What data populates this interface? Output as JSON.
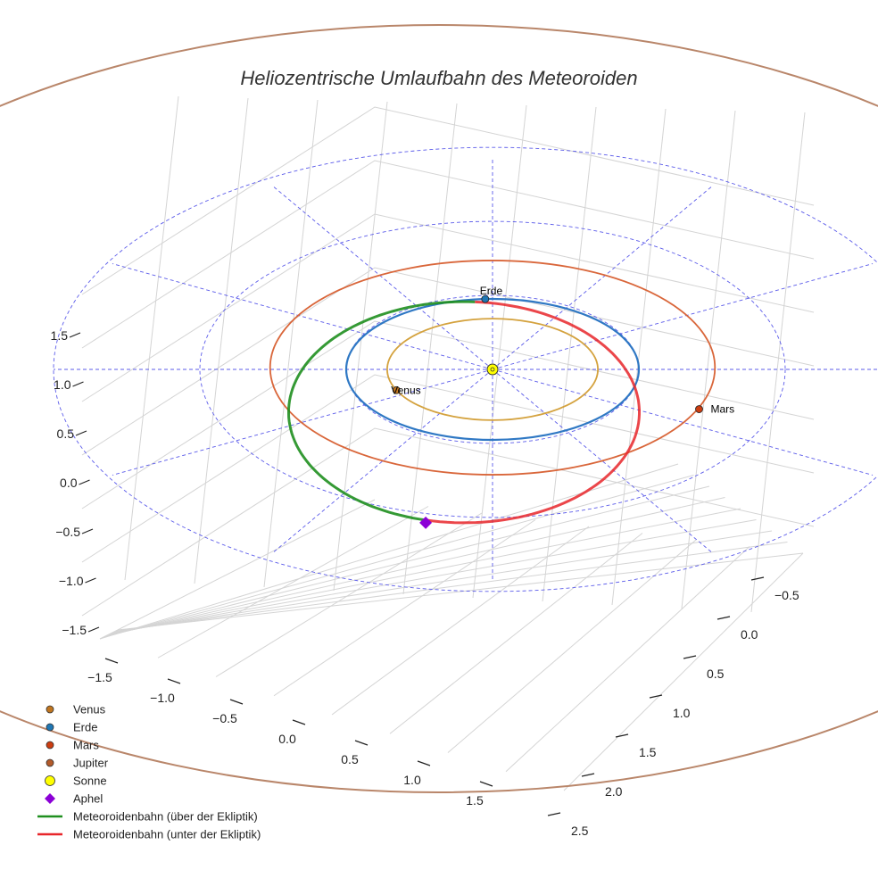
{
  "chart_data": {
    "type": "line",
    "projection": "3d",
    "title": "Heliozentrische Umlaufbahn des Meteoroiden",
    "xlabel": "",
    "ylabel": "",
    "zlabel": "",
    "x_ticks": [
      "−1.5",
      "−1.0",
      "−0.5",
      "0.0",
      "0.5",
      "1.0",
      "1.5"
    ],
    "y_ticks": [
      "−0.5",
      "0.0",
      "0.5",
      "1.0",
      "1.5",
      "2.0",
      "2.5"
    ],
    "z_ticks": [
      "1.5",
      "1.0",
      "0.5",
      "0.0",
      "−0.5",
      "−1.0",
      "−1.5"
    ],
    "xlim": [
      -1.7,
      1.7
    ],
    "ylim": [
      -0.7,
      2.7
    ],
    "zlim": [
      -1.7,
      1.7
    ],
    "grid": true,
    "legend_placement": "bottom-left",
    "orbits": [
      {
        "name": "Venus",
        "semi_major_axis_au": 0.72,
        "color": "#d4a23e"
      },
      {
        "name": "Erde",
        "semi_major_axis_au": 1.0,
        "color": "#2f78c4"
      },
      {
        "name": "Mars",
        "semi_major_axis_au": 1.52,
        "color": "#d9663a"
      },
      {
        "name": "Jupiter",
        "semi_major_axis_au": 5.2,
        "color": "#b9866a"
      }
    ],
    "meteoroid_orbit": {
      "perihelion_au": 1.0,
      "aphelion_au": 1.55,
      "segments": [
        {
          "name": "Meteoroidenbahn (über der Ekliptik)",
          "color": "#1f8f1f"
        },
        {
          "name": "Meteoroidenbahn (unter der Ekliptik)",
          "color": "#e8262a"
        }
      ]
    },
    "points": [
      {
        "name": "Venus",
        "label": "Venus",
        "color": "#c0751f"
      },
      {
        "name": "Erde",
        "label": "Erde",
        "color": "#1f77b4"
      },
      {
        "name": "Mars",
        "label": "Mars",
        "color": "#cc3d11"
      },
      {
        "name": "Sonne",
        "label": "",
        "color": "#ffff00"
      },
      {
        "name": "Aphel",
        "label": "",
        "color": "#8b00d6"
      }
    ],
    "legend": [
      {
        "label": "Venus",
        "marker": "circle",
        "color": "#c0751f"
      },
      {
        "label": "Erde",
        "marker": "circle",
        "color": "#1f77b4"
      },
      {
        "label": "Mars",
        "marker": "circle",
        "color": "#cc3d11"
      },
      {
        "label": "Jupiter",
        "marker": "circle",
        "color": "#b35a2a"
      },
      {
        "label": "Sonne",
        "marker": "circle",
        "color": "#ffff00"
      },
      {
        "label": "Aphel",
        "marker": "diamond",
        "color": "#8b00d6"
      },
      {
        "label": "Meteoroidenbahn (über der Ekliptik)",
        "marker": "line",
        "color": "#1f8f1f"
      },
      {
        "label": "Meteoroidenbahn (unter der Ekliptik)",
        "marker": "line",
        "color": "#e8262a"
      }
    ]
  }
}
